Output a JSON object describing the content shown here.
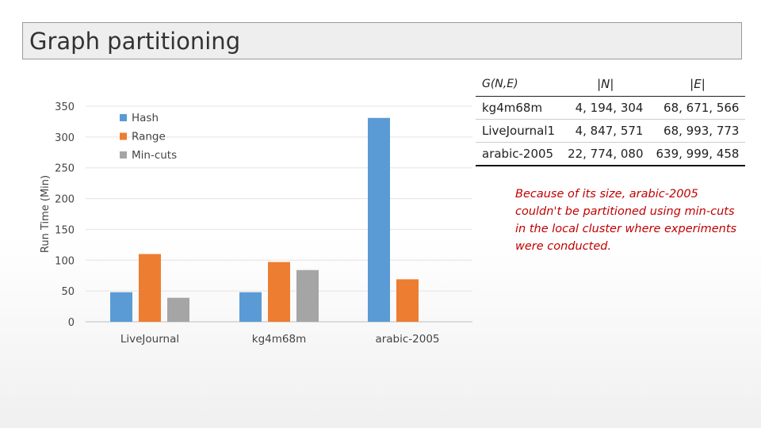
{
  "slide": {
    "title": "Graph partitioning",
    "note": "Because of its size, arabic-2005 couldn't be partitioned using min-cuts in the local cluster where experiments were conducted."
  },
  "table": {
    "headers": [
      "G(N,E)",
      "|N|",
      "|E|"
    ],
    "rows": [
      [
        "kg4m68m",
        "4, 194, 304",
        "68, 671, 566"
      ],
      [
        "LiveJournal1",
        "4, 847, 571",
        "68, 993, 773"
      ],
      [
        "arabic-2005",
        "22, 774, 080",
        "639, 999, 458"
      ]
    ]
  },
  "chart_data": {
    "type": "bar",
    "title": "",
    "xlabel": "",
    "ylabel": "Run Time (Min)",
    "ylim": [
      0,
      350
    ],
    "yticks": [
      0,
      50,
      100,
      150,
      200,
      250,
      300,
      350
    ],
    "categories": [
      "LiveJournal",
      "kg4m68m",
      "arabic-2005"
    ],
    "series": [
      {
        "name": "Hash",
        "color": "#5b9bd5",
        "values": [
          48,
          48,
          331
        ]
      },
      {
        "name": "Range",
        "color": "#ed7d31",
        "values": [
          110,
          97,
          69
        ]
      },
      {
        "name": "Min-cuts",
        "color": "#a5a5a5",
        "values": [
          39,
          84,
          null
        ]
      }
    ],
    "legend": "top-left",
    "grid": true
  }
}
